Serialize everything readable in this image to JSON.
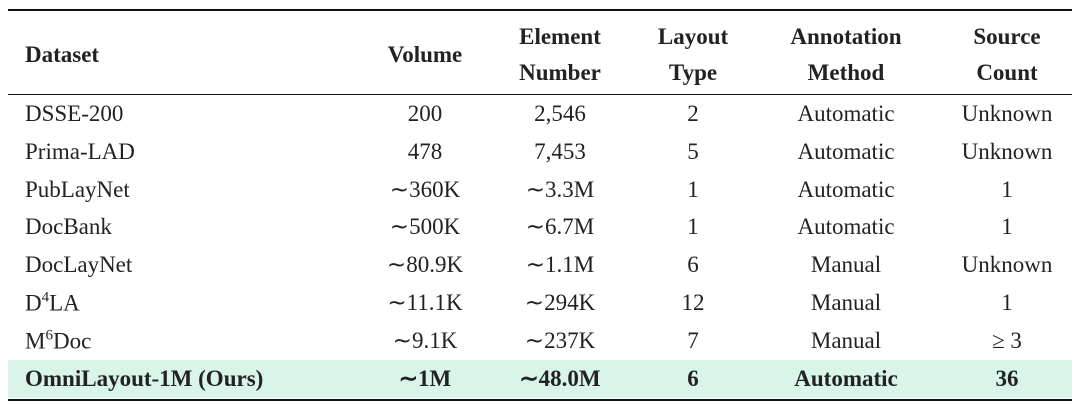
{
  "table": {
    "header": [
      [
        "Dataset"
      ],
      [
        "Volume"
      ],
      [
        "Element",
        "Number"
      ],
      [
        "Layout",
        "Type"
      ],
      [
        "Annotation",
        "Method"
      ],
      [
        "Source",
        "Count"
      ]
    ],
    "rows": [
      [
        "DSSE-200",
        "200",
        "2,546",
        "2",
        "Automatic",
        "Unknown"
      ],
      [
        "Prima-LAD",
        "478",
        "7,453",
        "5",
        "Automatic",
        "Unknown"
      ],
      [
        "PubLayNet",
        "∼360K",
        "∼3.3M",
        "1",
        "Automatic",
        "1"
      ],
      [
        "DocBank",
        "∼500K",
        "∼6.7M",
        "1",
        "Automatic",
        "1"
      ],
      [
        "DocLayNet",
        "∼80.9K",
        "∼1.1M",
        "6",
        "Manual",
        "Unknown"
      ],
      [
        {
          "base": "D",
          "sup": "4",
          "rest": "LA"
        },
        "∼11.1K",
        "∼294K",
        "12",
        "Manual",
        "1"
      ],
      [
        {
          "base": "M",
          "sup": "6",
          "rest": "Doc"
        },
        "∼9.1K",
        "∼237K",
        "7",
        "Manual",
        "≥ 3"
      ],
      [
        "OmniLayout-1M (Ours)",
        "∼1M",
        "∼48.0M",
        "6",
        "Automatic",
        "36"
      ]
    ]
  }
}
